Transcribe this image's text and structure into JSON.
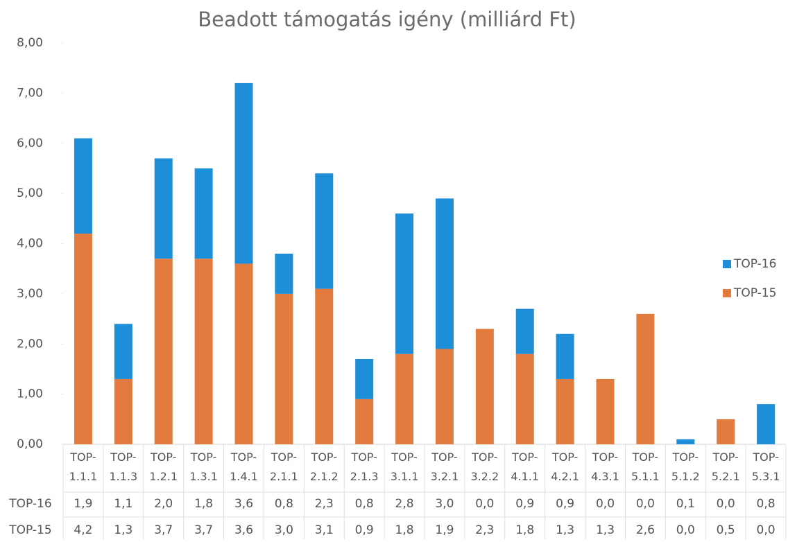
{
  "chart_data": {
    "type": "stacked_bar",
    "title": "Beadott támogatás igény (milliárd Ft)",
    "categories": [
      "TOP-1.1.1",
      "TOP-1.1.3",
      "TOP-1.2.1",
      "TOP-1.3.1",
      "TOP-1.4.1",
      "TOP-2.1.1",
      "TOP-2.1.2",
      "TOP-2.1.3",
      "TOP-3.1.1",
      "TOP-3.2.1",
      "TOP-3.2.2",
      "TOP-4.1.1",
      "TOP-4.2.1",
      "TOP-4.3.1",
      "TOP-5.1.1",
      "TOP-5.1.2",
      "TOP-5.2.1",
      "TOP-5.3.1"
    ],
    "series": [
      {
        "name": "TOP-16",
        "color": "#1f8ed8",
        "values": [
          1.9,
          1.1,
          2.0,
          1.8,
          3.6,
          0.8,
          2.3,
          0.8,
          2.8,
          3.0,
          0.0,
          0.9,
          0.9,
          0.0,
          0.0,
          0.1,
          0.0,
          0.8
        ],
        "value_labels": [
          "1,9",
          "1,1",
          "2,0",
          "1,8",
          "3,6",
          "0,8",
          "2,3",
          "0,8",
          "2,8",
          "3,0",
          "0,0",
          "0,9",
          "0,9",
          "0,0",
          "0,0",
          "0,1",
          "0,0",
          "0,8"
        ]
      },
      {
        "name": "TOP-15",
        "color": "#e37b3f",
        "values": [
          4.2,
          1.3,
          3.7,
          3.7,
          3.6,
          3.0,
          3.1,
          0.9,
          1.8,
          1.9,
          2.3,
          1.8,
          1.3,
          1.3,
          2.6,
          0.0,
          0.5,
          0.0
        ],
        "value_labels": [
          "4,2",
          "1,3",
          "3,7",
          "3,7",
          "3,6",
          "3,0",
          "3,1",
          "0,9",
          "1,8",
          "1,9",
          "2,3",
          "1,8",
          "1,3",
          "1,3",
          "2,6",
          "0,0",
          "0,5",
          "0,0"
        ]
      }
    ],
    "ylim": [
      0,
      8
    ],
    "yticks": [
      {
        "value": 0,
        "label": "0,00"
      },
      {
        "value": 1,
        "label": "1,00"
      },
      {
        "value": 2,
        "label": "2,00"
      },
      {
        "value": 3,
        "label": "3,00"
      },
      {
        "value": 4,
        "label": "4,00"
      },
      {
        "value": 5,
        "label": "5,00"
      },
      {
        "value": 6,
        "label": "6,00"
      },
      {
        "value": 7,
        "label": "7,00"
      },
      {
        "value": 8,
        "label": "8,00"
      }
    ],
    "grid": false,
    "legend": "right"
  }
}
